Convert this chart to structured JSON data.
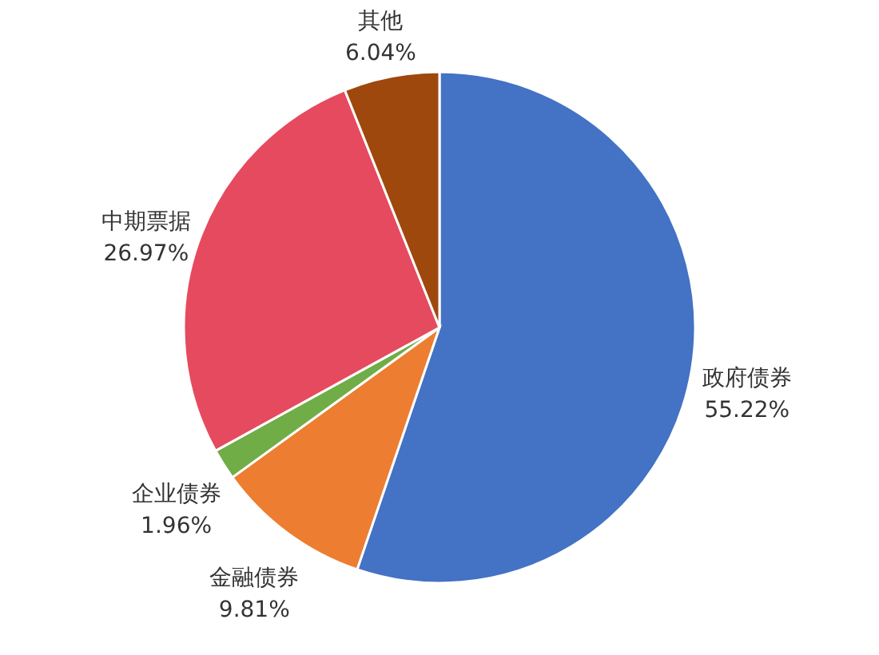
{
  "chart_data": {
    "type": "pie",
    "categories": [
      "政府债券",
      "金融债券",
      "企业债券",
      "中期票据",
      "其他"
    ],
    "values": [
      55.22,
      9.81,
      1.96,
      26.97,
      6.04
    ],
    "value_labels": [
      "55.22%",
      "9.81%",
      "1.96%",
      "26.97%",
      "6.04%"
    ],
    "colors": [
      "#4472c4",
      "#ed7d31",
      "#70ad47",
      "#e64a5e",
      "#9e480e"
    ]
  }
}
